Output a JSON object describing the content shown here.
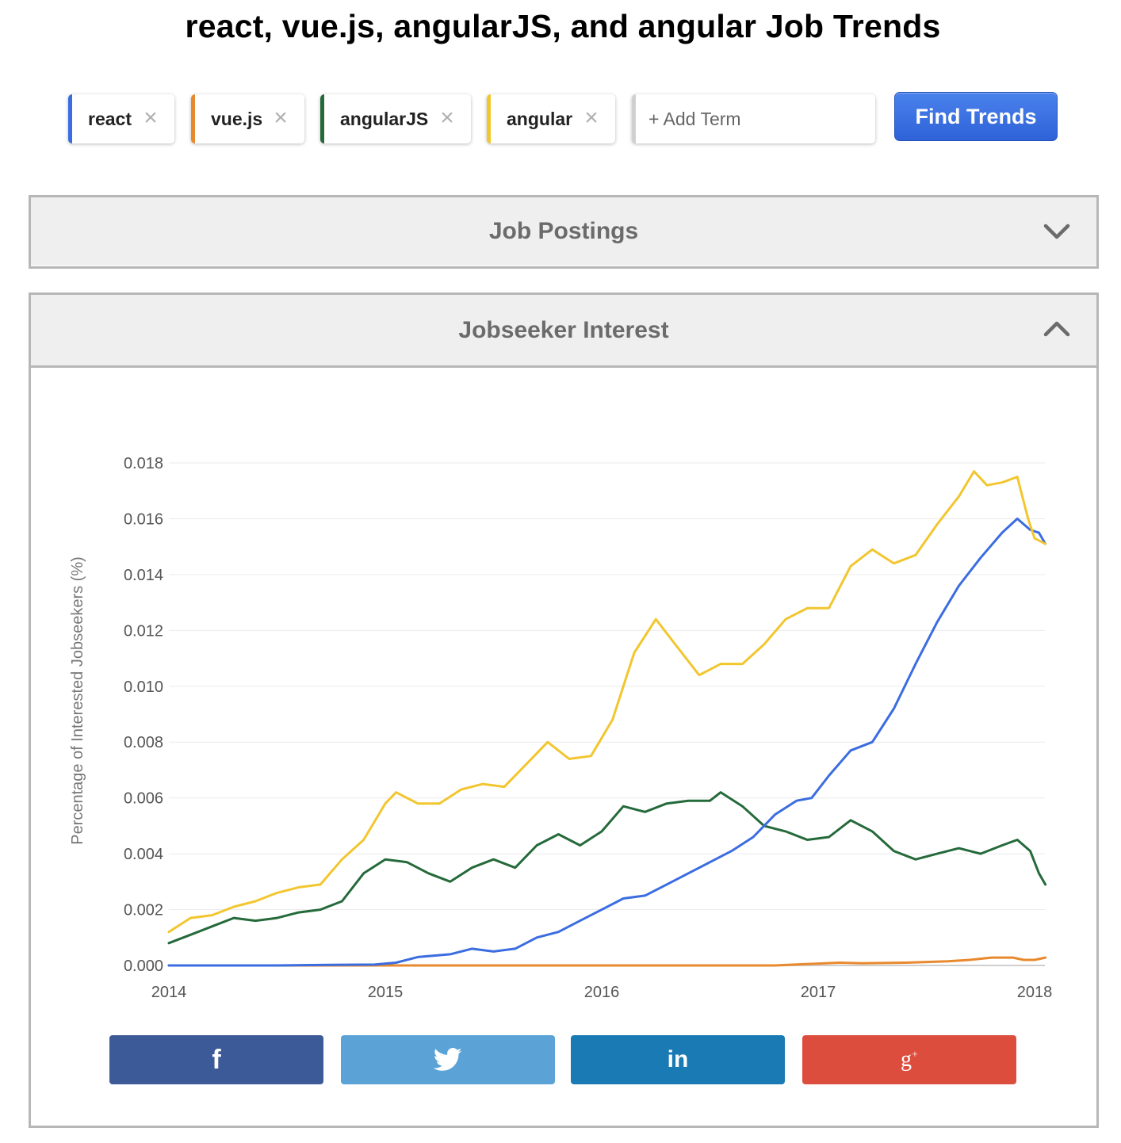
{
  "page": {
    "title": "react, vue.js, angularJS, and angular Job Trends"
  },
  "terms": [
    {
      "label": "react",
      "color": "#3b6de0"
    },
    {
      "label": "vue.js",
      "color": "#e8892e"
    },
    {
      "label": "angularJS",
      "color": "#256a3b"
    },
    {
      "label": "angular",
      "color": "#f2c62f"
    }
  ],
  "search": {
    "placeholder": "+ Add Term",
    "button_label": "Find Trends"
  },
  "panels": {
    "job_postings": {
      "title": "Job Postings",
      "state": "collapsed",
      "icon": "chevron-down-icon"
    },
    "jobseeker_interest": {
      "title": "Jobseeker Interest",
      "state": "expanded",
      "icon": "chevron-up-icon"
    }
  },
  "share": [
    {
      "network": "facebook",
      "icon": "facebook-icon",
      "glyph": "f",
      "color": "#3c5a97"
    },
    {
      "network": "twitter",
      "icon": "twitter-icon",
      "glyph": "",
      "color": "#5ba3d7"
    },
    {
      "network": "linkedin",
      "icon": "linkedin-icon",
      "glyph": "in",
      "color": "#1a7ab4"
    },
    {
      "network": "google-plus",
      "icon": "google-plus-icon",
      "glyph": "g+",
      "color": "#dc4d3e"
    }
  ],
  "chart_data": {
    "type": "line",
    "title": "",
    "xlabel": "",
    "ylabel": "Percentage of Interested Jobseekers (%)",
    "xlim": [
      2014.0,
      2018.0
    ],
    "ylim": [
      0,
      0.018
    ],
    "xticks": [
      2014,
      2015,
      2016,
      2017,
      2018
    ],
    "xtick_labels": [
      "2014",
      "2015",
      "2016",
      "2017",
      "2018"
    ],
    "yticks": [
      0,
      0.002,
      0.004,
      0.006,
      0.008,
      0.01,
      0.012,
      0.014,
      0.016,
      0.018
    ],
    "ytick_labels": [
      "0.000",
      "0.002",
      "0.004",
      "0.006",
      "0.008",
      "0.010",
      "0.012",
      "0.014",
      "0.016",
      "0.018"
    ],
    "grid": true,
    "legend": "none",
    "series": [
      {
        "name": "react",
        "color": "#3b6de0",
        "points": [
          [
            2014.0,
            0
          ],
          [
            2014.5,
            0
          ],
          [
            2014.75,
            2e-05
          ],
          [
            2014.95,
            3e-05
          ],
          [
            2015.05,
            0.0001
          ],
          [
            2015.15,
            0.0003
          ],
          [
            2015.3,
            0.0004
          ],
          [
            2015.4,
            0.0006
          ],
          [
            2015.5,
            0.0005
          ],
          [
            2015.6,
            0.0006
          ],
          [
            2015.7,
            0.001
          ],
          [
            2015.8,
            0.0012
          ],
          [
            2015.9,
            0.0016
          ],
          [
            2016.0,
            0.002
          ],
          [
            2016.1,
            0.0024
          ],
          [
            2016.2,
            0.0025
          ],
          [
            2016.3,
            0.0029
          ],
          [
            2016.4,
            0.0033
          ],
          [
            2016.5,
            0.0037
          ],
          [
            2016.6,
            0.0041
          ],
          [
            2016.7,
            0.0046
          ],
          [
            2016.8,
            0.0054
          ],
          [
            2016.9,
            0.0059
          ],
          [
            2016.97,
            0.006
          ],
          [
            2017.05,
            0.0068
          ],
          [
            2017.15,
            0.0077
          ],
          [
            2017.25,
            0.008
          ],
          [
            2017.35,
            0.0092
          ],
          [
            2017.45,
            0.0108
          ],
          [
            2017.55,
            0.0123
          ],
          [
            2017.65,
            0.0136
          ],
          [
            2017.75,
            0.0146
          ],
          [
            2017.85,
            0.0155
          ],
          [
            2017.92,
            0.016
          ],
          [
            2017.98,
            0.0156
          ],
          [
            2018.02,
            0.0155
          ],
          [
            2018.05,
            0.0151
          ]
        ]
      },
      {
        "name": "vue.js",
        "color": "#e8892e",
        "points": [
          [
            2014.0,
            0
          ],
          [
            2016.8,
            0
          ],
          [
            2016.95,
            5e-05
          ],
          [
            2017.1,
            0.0001
          ],
          [
            2017.2,
            8e-05
          ],
          [
            2017.4,
            0.0001
          ],
          [
            2017.6,
            0.00015
          ],
          [
            2017.7,
            0.0002
          ],
          [
            2017.8,
            0.00028
          ],
          [
            2017.9,
            0.00028
          ],
          [
            2017.95,
            0.0002
          ],
          [
            2018.0,
            0.0002
          ],
          [
            2018.05,
            0.00028
          ]
        ]
      },
      {
        "name": "angularJS",
        "color": "#256a3b",
        "points": [
          [
            2014.0,
            0.0008
          ],
          [
            2014.1,
            0.0011
          ],
          [
            2014.2,
            0.0014
          ],
          [
            2014.3,
            0.0017
          ],
          [
            2014.4,
            0.0016
          ],
          [
            2014.5,
            0.0017
          ],
          [
            2014.6,
            0.0019
          ],
          [
            2014.7,
            0.002
          ],
          [
            2014.8,
            0.0023
          ],
          [
            2014.9,
            0.0033
          ],
          [
            2015.0,
            0.0038
          ],
          [
            2015.1,
            0.0037
          ],
          [
            2015.2,
            0.0033
          ],
          [
            2015.3,
            0.003
          ],
          [
            2015.4,
            0.0035
          ],
          [
            2015.5,
            0.0038
          ],
          [
            2015.6,
            0.0035
          ],
          [
            2015.7,
            0.0043
          ],
          [
            2015.8,
            0.0047
          ],
          [
            2015.9,
            0.0043
          ],
          [
            2016.0,
            0.0048
          ],
          [
            2016.1,
            0.0057
          ],
          [
            2016.2,
            0.0055
          ],
          [
            2016.3,
            0.0058
          ],
          [
            2016.4,
            0.0059
          ],
          [
            2016.5,
            0.0059
          ],
          [
            2016.55,
            0.0062
          ],
          [
            2016.65,
            0.0057
          ],
          [
            2016.75,
            0.005
          ],
          [
            2016.85,
            0.0048
          ],
          [
            2016.95,
            0.0045
          ],
          [
            2017.05,
            0.0046
          ],
          [
            2017.15,
            0.0052
          ],
          [
            2017.25,
            0.0048
          ],
          [
            2017.35,
            0.0041
          ],
          [
            2017.45,
            0.0038
          ],
          [
            2017.55,
            0.004
          ],
          [
            2017.65,
            0.0042
          ],
          [
            2017.75,
            0.004
          ],
          [
            2017.85,
            0.0043
          ],
          [
            2017.92,
            0.0045
          ],
          [
            2017.98,
            0.0041
          ],
          [
            2018.02,
            0.0033
          ],
          [
            2018.05,
            0.0029
          ]
        ]
      },
      {
        "name": "angular",
        "color": "#f2c62f",
        "points": [
          [
            2014.0,
            0.0012
          ],
          [
            2014.1,
            0.0017
          ],
          [
            2014.2,
            0.0018
          ],
          [
            2014.3,
            0.0021
          ],
          [
            2014.4,
            0.0023
          ],
          [
            2014.5,
            0.0026
          ],
          [
            2014.6,
            0.0028
          ],
          [
            2014.7,
            0.0029
          ],
          [
            2014.8,
            0.0038
          ],
          [
            2014.9,
            0.0045
          ],
          [
            2015.0,
            0.0058
          ],
          [
            2015.05,
            0.0062
          ],
          [
            2015.15,
            0.0058
          ],
          [
            2015.25,
            0.0058
          ],
          [
            2015.35,
            0.0063
          ],
          [
            2015.45,
            0.0065
          ],
          [
            2015.55,
            0.0064
          ],
          [
            2015.65,
            0.0072
          ],
          [
            2015.75,
            0.008
          ],
          [
            2015.85,
            0.0074
          ],
          [
            2015.95,
            0.0075
          ],
          [
            2016.05,
            0.0088
          ],
          [
            2016.15,
            0.0112
          ],
          [
            2016.25,
            0.0124
          ],
          [
            2016.35,
            0.0114
          ],
          [
            2016.45,
            0.0104
          ],
          [
            2016.55,
            0.0108
          ],
          [
            2016.65,
            0.0108
          ],
          [
            2016.75,
            0.0115
          ],
          [
            2016.85,
            0.0124
          ],
          [
            2016.95,
            0.0128
          ],
          [
            2017.05,
            0.0128
          ],
          [
            2017.15,
            0.0143
          ],
          [
            2017.25,
            0.0149
          ],
          [
            2017.35,
            0.0144
          ],
          [
            2017.45,
            0.0147
          ],
          [
            2017.55,
            0.0158
          ],
          [
            2017.65,
            0.0168
          ],
          [
            2017.72,
            0.0177
          ],
          [
            2017.78,
            0.0172
          ],
          [
            2017.85,
            0.0173
          ],
          [
            2017.92,
            0.0175
          ],
          [
            2017.97,
            0.016
          ],
          [
            2018.0,
            0.0153
          ],
          [
            2018.05,
            0.0151
          ]
        ]
      }
    ]
  }
}
